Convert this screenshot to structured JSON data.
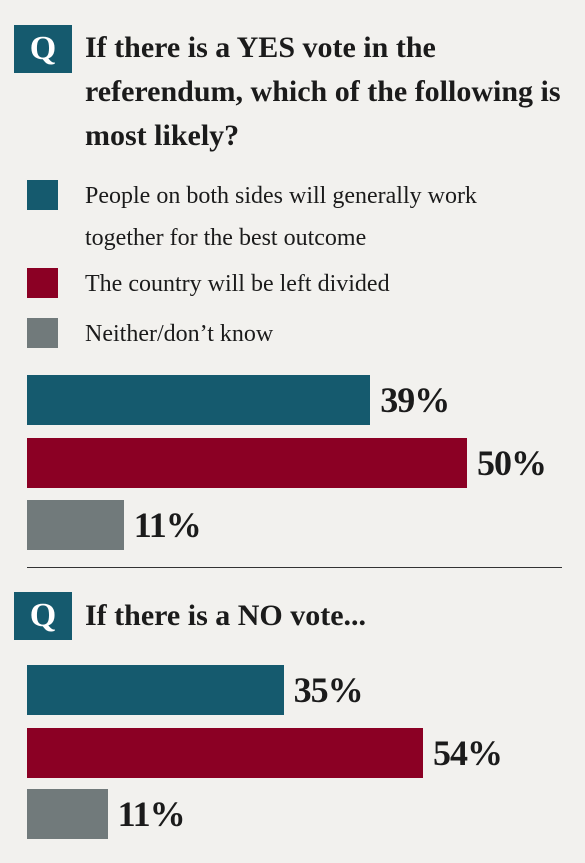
{
  "chart_data": [
    {
      "type": "bar",
      "orientation": "horizontal",
      "badge": "Q",
      "title": "If there is a YES vote in the referendum, which of the following is most likely?",
      "categories": [
        "People on both sides will generally work together for the best outcome",
        "The country will be left divided",
        "Neither/don’t know"
      ],
      "colors": [
        "#155a6e",
        "#8b0024",
        "#717a7b"
      ],
      "values": [
        39,
        50,
        11
      ],
      "value_labels": [
        "39%",
        "50%",
        "11%"
      ],
      "xlim": [
        0,
        60
      ]
    },
    {
      "type": "bar",
      "orientation": "horizontal",
      "badge": "Q",
      "title": "If there is a NO vote...",
      "categories": [
        null,
        null,
        null
      ],
      "colors": [
        "#155a6e",
        "#8b0024",
        "#717a7b"
      ],
      "values": [
        35,
        54,
        11
      ],
      "value_labels": [
        "35%",
        "54%",
        "11%"
      ],
      "xlim": [
        0,
        72
      ]
    }
  ]
}
